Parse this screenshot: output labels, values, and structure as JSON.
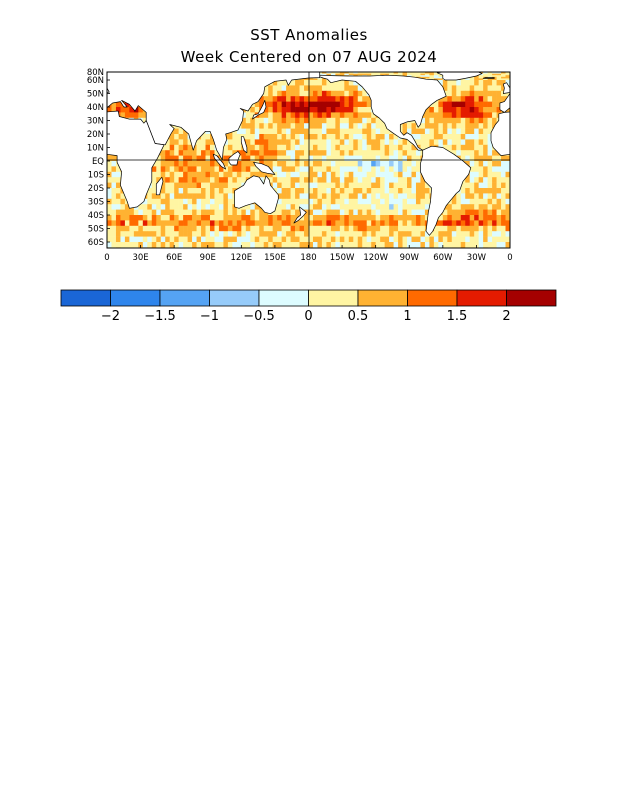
{
  "title": "SST Anomalies",
  "subtitle": "Week Centered on 07 AUG 2024",
  "map": {
    "lat_labels": [
      "80N",
      "60N",
      "50N",
      "40N",
      "30N",
      "20N",
      "10N",
      "EQ",
      "10S",
      "20S",
      "30S",
      "40S",
      "50S",
      "60S"
    ],
    "lon_labels": [
      "0",
      "30E",
      "60E",
      "90E",
      "120E",
      "150E",
      "180",
      "150W",
      "120W",
      "90W",
      "60W",
      "30W",
      "0"
    ],
    "land_color": "#ffffff",
    "coast_color": "#000000"
  },
  "colorbar": {
    "colors": [
      "#1a66d6",
      "#2e85ec",
      "#55a3f3",
      "#96cbf9",
      "#ddfcff",
      "#fff5a3",
      "#ffb232",
      "#ff6a00",
      "#e41b00",
      "#a50000"
    ],
    "labels": [
      "−2",
      "−1.5",
      "−1",
      "−0.5",
      "0",
      "0.5",
      "1",
      "1.5",
      "2"
    ]
  }
}
